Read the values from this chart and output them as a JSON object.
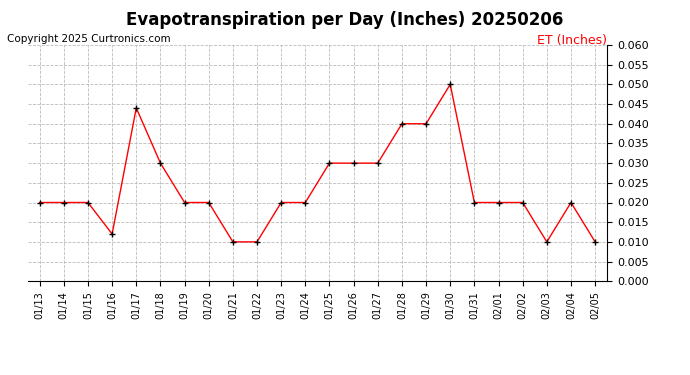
{
  "title": "Evapotranspiration per Day (Inches) 20250206",
  "copyright_text": "Copyright 2025 Curtronics.com",
  "legend_label": "ET (Inches)",
  "dates": [
    "01/13",
    "01/14",
    "01/15",
    "01/16",
    "01/17",
    "01/18",
    "01/19",
    "01/20",
    "01/21",
    "01/22",
    "01/23",
    "01/24",
    "01/25",
    "01/26",
    "01/27",
    "01/28",
    "01/29",
    "01/30",
    "01/31",
    "02/01",
    "02/02",
    "02/03",
    "02/04",
    "02/05"
  ],
  "values": [
    0.02,
    0.02,
    0.02,
    0.012,
    0.044,
    0.03,
    0.02,
    0.02,
    0.01,
    0.01,
    0.02,
    0.02,
    0.03,
    0.03,
    0.03,
    0.04,
    0.04,
    0.05,
    0.02,
    0.02,
    0.02,
    0.01,
    0.02,
    0.01
  ],
  "line_color": "red",
  "marker_color": "black",
  "marker_style": "+",
  "marker_size": 5,
  "marker_edge_width": 1.0,
  "line_width": 1.0,
  "ylim": [
    0.0,
    0.06
  ],
  "yticks": [
    0.0,
    0.005,
    0.01,
    0.015,
    0.02,
    0.025,
    0.03,
    0.035,
    0.04,
    0.045,
    0.05,
    0.055,
    0.06
  ],
  "background_color": "#ffffff",
  "grid_color": "#bbbbbb",
  "grid_style": "--",
  "title_fontsize": 12,
  "copyright_fontsize": 7.5,
  "legend_fontsize": 9,
  "tick_fontsize": 7,
  "ytick_fontsize": 8
}
